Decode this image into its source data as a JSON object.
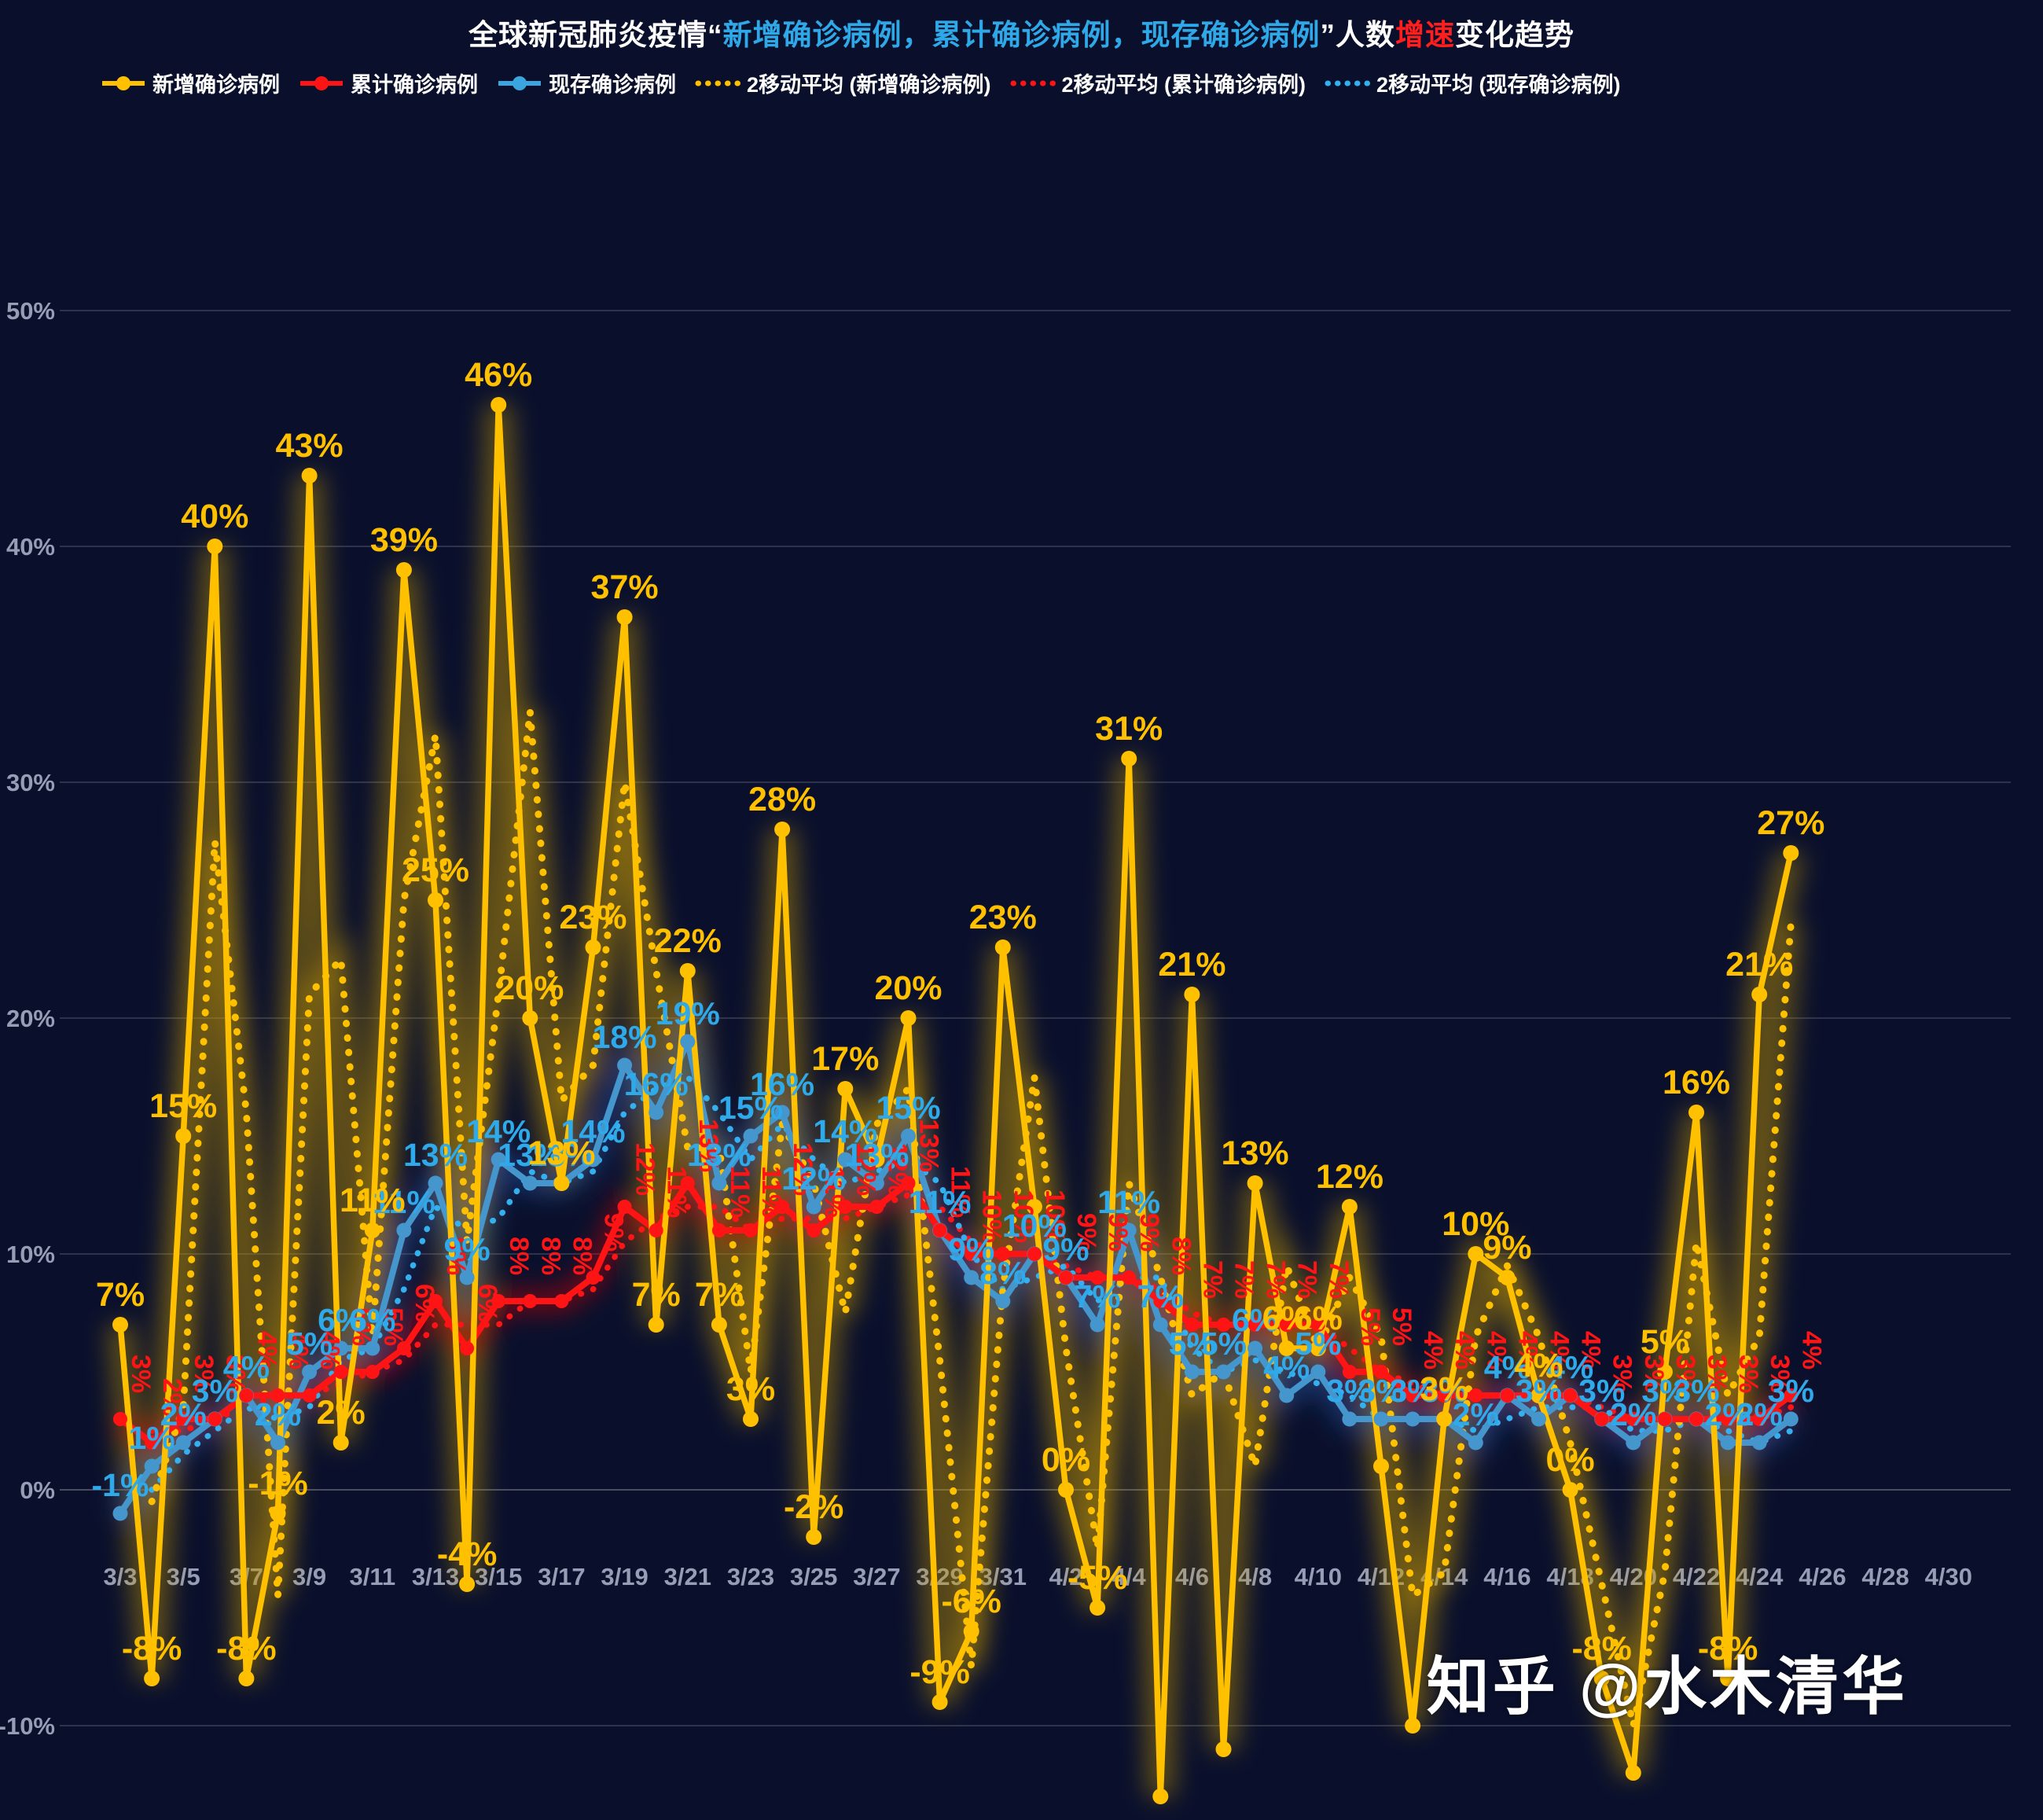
{
  "title": {
    "parts": [
      {
        "text": "全球新冠肺炎疫情“",
        "color": "#ffffff"
      },
      {
        "text": "新增确诊病例，累计确诊病例，现存确诊病例",
        "color": "#2fa8e8"
      },
      {
        "text": "”人数",
        "color": "#ffffff"
      },
      {
        "text": "增速",
        "color": "#fe1e1e"
      },
      {
        "text": "变化趋势",
        "color": "#ffffff"
      }
    ]
  },
  "legend": {
    "items": [
      {
        "label": "新增确诊病例",
        "color": "#ffc000",
        "style": "solid"
      },
      {
        "label": "累计确诊病例",
        "color": "#fe1414",
        "style": "solid"
      },
      {
        "label": "现存确诊病例",
        "color": "#3ba5e0",
        "style": "solid"
      },
      {
        "label": "2移动平均 (新增确诊病例)",
        "color": "#ffc000",
        "style": "dotted"
      },
      {
        "label": "2移动平均 (累计确诊病例)",
        "color": "#fe1414",
        "style": "dotted"
      },
      {
        "label": "2移动平均 (现存确诊病例)",
        "color": "#35b0ee",
        "style": "dotted"
      }
    ]
  },
  "watermark": {
    "text": "知乎 @水木清华"
  },
  "chart_data": {
    "type": "line",
    "title": "全球新冠肺炎疫情“新增确诊病例，累计确诊病例，现存确诊病例”人数增速变化趋势",
    "ylabel": "",
    "xlabel": "",
    "ylim": [
      -10,
      50
    ],
    "y_ticks": [
      50,
      40,
      30,
      20,
      10,
      0,
      -10
    ],
    "y_tick_labels": [
      "50%",
      "40%",
      "30%",
      "20%",
      "10%",
      "0%",
      "-10%"
    ],
    "x_tick_labels": [
      "3/3",
      "3/5",
      "3/7",
      "3/9",
      "3/11",
      "3/13",
      "3/15",
      "3/17",
      "3/19",
      "3/21",
      "3/23",
      "3/25",
      "3/27",
      "3/29",
      "3/31",
      "4/2",
      "4/4",
      "4/6",
      "4/8",
      "4/10",
      "4/12",
      "4/14",
      "4/16",
      "4/18",
      "4/20",
      "4/22",
      "4/24",
      "4/26",
      "4/28",
      "4/30"
    ],
    "grid": true,
    "legend_position": "top",
    "moving_average_period": 2,
    "categories": [
      "3/3",
      "3/4",
      "3/5",
      "3/6",
      "3/7",
      "3/8",
      "3/9",
      "3/10",
      "3/11",
      "3/12",
      "3/13",
      "3/14",
      "3/15",
      "3/16",
      "3/17",
      "3/18",
      "3/19",
      "3/20",
      "3/21",
      "3/22",
      "3/23",
      "3/24",
      "3/25",
      "3/26",
      "3/27",
      "3/28",
      "3/29",
      "3/30",
      "3/31",
      "4/1",
      "4/2",
      "4/3",
      "4/4",
      "4/5",
      "4/6",
      "4/7",
      "4/8",
      "4/9",
      "4/10",
      "4/11",
      "4/12",
      "4/13",
      "4/14",
      "4/15",
      "4/16",
      "4/17",
      "4/18",
      "4/19",
      "4/20",
      "4/21",
      "4/22",
      "4/23",
      "4/24",
      "4/25"
    ],
    "series": [
      {
        "name": "新增确诊病例",
        "color": "#ffc000",
        "glow_color": "#c79a00",
        "values": [
          7,
          -8,
          15,
          40,
          -8,
          -1,
          43,
          2,
          11,
          39,
          25,
          -4,
          46,
          20,
          13,
          23,
          37,
          7,
          22,
          7,
          3,
          28,
          -2,
          17,
          14,
          20,
          -9,
          -6,
          23,
          12,
          0,
          -5,
          31,
          -13,
          21,
          -11,
          13,
          6,
          6,
          12,
          1,
          -10,
          3,
          10,
          9,
          4,
          0,
          -8,
          -12,
          5,
          16,
          -8,
          21,
          27
        ],
        "hidden_label_indices": [
          24,
          29,
          33,
          35,
          40,
          41,
          48
        ],
        "label_style": "above"
      },
      {
        "name": "累计确诊病例",
        "color": "#fe1414",
        "glow_color": "#d40000",
        "values": [
          3,
          2,
          3,
          3,
          4,
          4,
          4,
          5,
          5,
          6,
          8,
          6,
          8,
          8,
          8,
          9,
          12,
          11,
          13,
          11,
          11,
          12,
          11,
          12,
          12,
          13,
          11,
          10,
          10,
          10,
          9,
          9,
          9,
          8,
          7,
          7,
          7,
          7,
          7,
          5,
          5,
          4,
          4,
          4,
          4,
          4,
          4,
          3,
          3,
          3,
          3,
          3,
          3,
          4
        ],
        "hidden_label_indices": [],
        "label_style": "rotated"
      },
      {
        "name": "现存确诊病例",
        "color": "#4596cc",
        "label_color": "#2ea9ea",
        "ma_color": "#35b0ee",
        "glow_color": "#1e5fb4",
        "values": [
          -1,
          1,
          2,
          3,
          4,
          2,
          5,
          6,
          6,
          11,
          13,
          9,
          14,
          13,
          13,
          14,
          18,
          16,
          19,
          13,
          15,
          16,
          12,
          14,
          13,
          15,
          11,
          9,
          8,
          10,
          9,
          7,
          11,
          7,
          5,
          5,
          6,
          4,
          5,
          3,
          3,
          3,
          3,
          2,
          4,
          3,
          4,
          3,
          2,
          3,
          3,
          2,
          2,
          3
        ],
        "hidden_label_indices": [],
        "label_style": "above"
      }
    ]
  }
}
